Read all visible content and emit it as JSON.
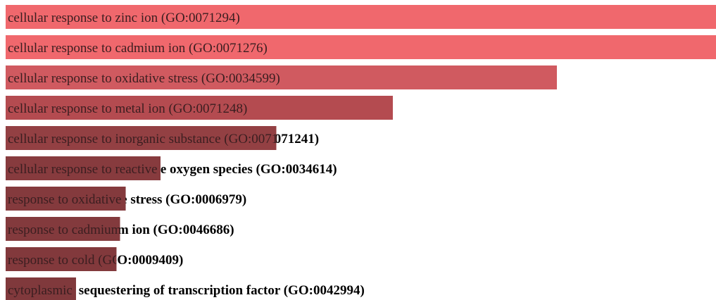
{
  "chart_data": {
    "type": "bar",
    "orientation": "horizontal",
    "title": "",
    "xlabel": "",
    "ylabel": "",
    "grid": false,
    "xlim": [
      0,
      1
    ],
    "categories": [
      "cellular response to zinc ion (GO:0071294)",
      "cellular response to cadmium ion (GO:0071276)",
      "cellular response to oxidative stress (GO:0034599)",
      "cellular response to metal ion (GO:0071248)",
      "cellular response to inorganic substance (GO:0071241)",
      "cellular response to reactive oxygen species (GO:0034614)",
      "response to oxidative stress (GO:0006979)",
      "response to cadmium ion (GO:0046686)",
      "response to cold (GO:0009409)",
      "cytoplasmic sequestering of transcription factor (GO:0042994)"
    ],
    "values": [
      1.0,
      1.0,
      0.776,
      0.545,
      0.381,
      0.218,
      0.169,
      0.161,
      0.156,
      0.099
    ],
    "colors": [
      "#f0686d",
      "#f0686d",
      "#d05a60",
      "#b44b50",
      "#934043",
      "#873b3e",
      "#843a3d",
      "#833a3d",
      "#82393c",
      "#80393c"
    ],
    "label_color_inside": "#3a1e20",
    "label_color_outside": "#000000"
  }
}
